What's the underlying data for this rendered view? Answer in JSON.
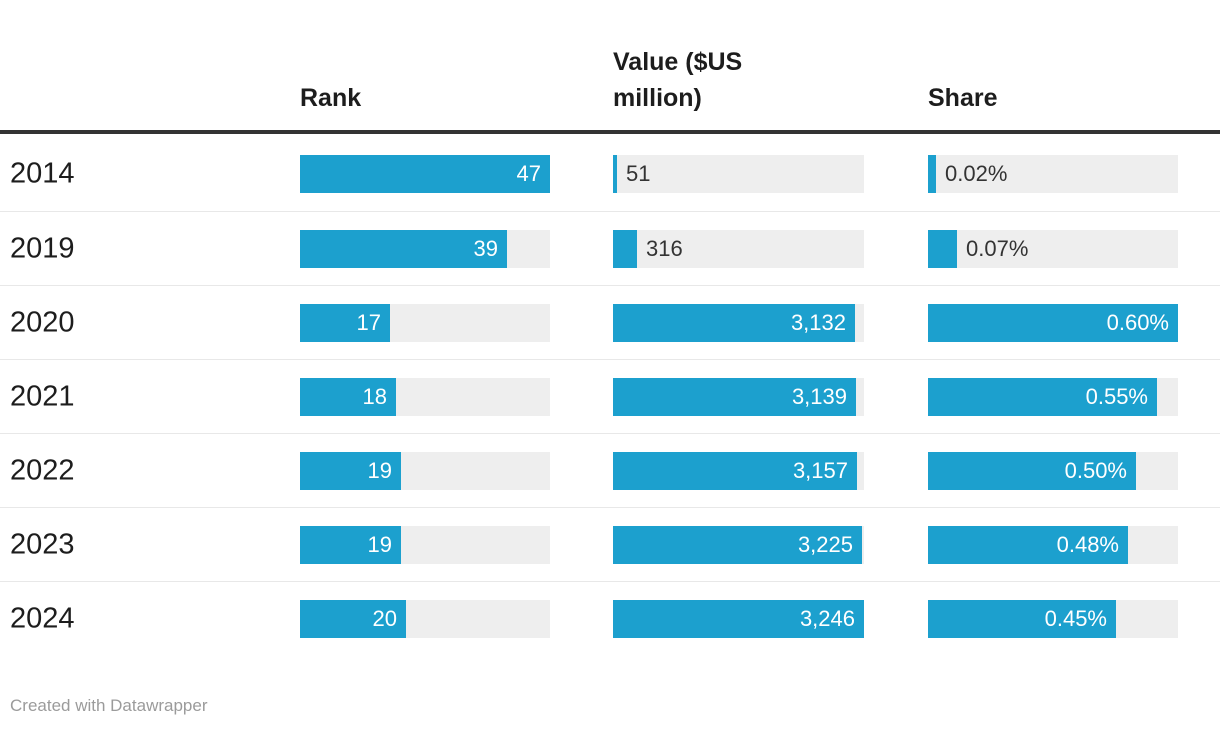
{
  "header": {
    "columns": [
      {
        "key": "rank",
        "label": "Rank"
      },
      {
        "key": "value",
        "label": "Value ($US million)"
      },
      {
        "key": "share",
        "label": "Share"
      }
    ]
  },
  "chart_data": {
    "type": "bar",
    "subtype": "table-with-bar-columns",
    "categories": [
      "2014",
      "2019",
      "2020",
      "2021",
      "2022",
      "2023",
      "2024"
    ],
    "series": [
      {
        "name": "Rank",
        "values": [
          47,
          39,
          17,
          18,
          19,
          19,
          20
        ],
        "labels": [
          "47",
          "39",
          "17",
          "18",
          "19",
          "19",
          "20"
        ],
        "axis_max": 47
      },
      {
        "name": "Value ($US million)",
        "values": [
          51,
          316,
          3132,
          3139,
          3157,
          3225,
          3246
        ],
        "labels": [
          "51",
          "316",
          "3,132",
          "3,139",
          "3,157",
          "3,225",
          "3,246"
        ],
        "axis_max": 3246
      },
      {
        "name": "Share",
        "values": [
          0.02,
          0.07,
          0.6,
          0.55,
          0.5,
          0.48,
          0.45
        ],
        "labels": [
          "0.02%",
          "0.07%",
          "0.60%",
          "0.55%",
          "0.50%",
          "0.48%",
          "0.45%"
        ],
        "axis_max": 0.6
      }
    ],
    "grid": false,
    "legend_position": "none",
    "title": "",
    "xlabel": "",
    "ylabel": ""
  },
  "footer": {
    "credit": "Created with Datawrapper"
  },
  "colors": {
    "bar_fill": "#1ca0ce",
    "bar_track": "#eeeeee",
    "label_inside": "#ffffff",
    "label_outside": "#333333",
    "header_rule": "#333333",
    "row_divider": "#e8e8e8",
    "text": "#1d1d1d",
    "footer_text": "#9b9b9b"
  }
}
